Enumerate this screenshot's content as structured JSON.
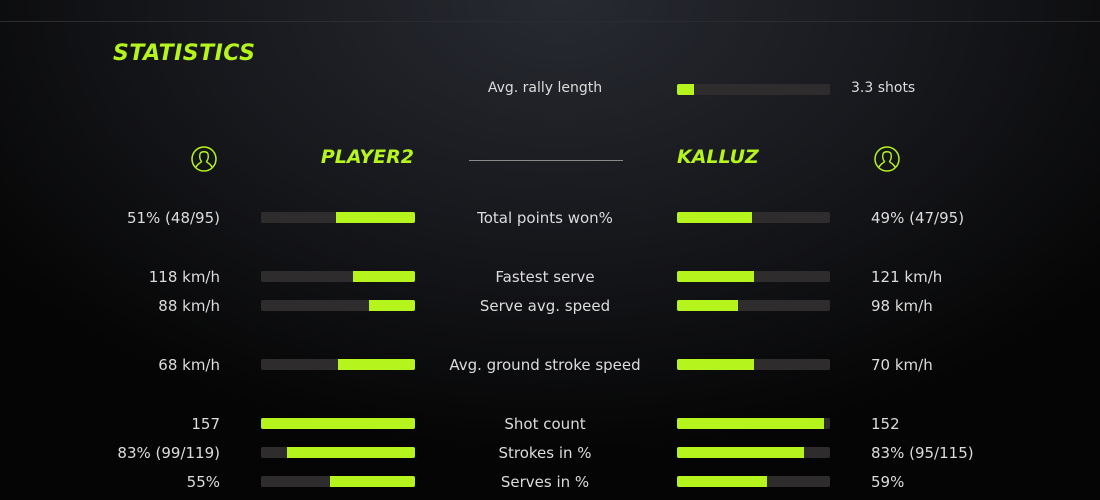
{
  "title": "STATISTICS",
  "accent": "#b5f51d",
  "rally": {
    "label": "Avg. rally length",
    "value": "3.3 shots",
    "fill": 0.11
  },
  "players": {
    "left": "PLAYER2",
    "right": "KALLUZ",
    "icon": "user-circle-icon"
  },
  "rows": [
    {
      "label": "Total points won%",
      "left": "51% (48/95)",
      "right": "49% (47/95)",
      "left_fill": 0.51,
      "right_fill": 0.49
    },
    {
      "label": "Fastest serve",
      "left": "118 km/h",
      "right": "121 km/h",
      "left_fill": 0.4,
      "right_fill": 0.5
    },
    {
      "label": "Serve avg. speed",
      "left": "88 km/h",
      "right": "98 km/h",
      "left_fill": 0.3,
      "right_fill": 0.4
    },
    {
      "label": "Avg. ground stroke speed",
      "left": "68 km/h",
      "right": "70 km/h",
      "left_fill": 0.5,
      "right_fill": 0.5
    },
    {
      "label": "Shot count",
      "left": "157",
      "right": "152",
      "left_fill": 1.0,
      "right_fill": 0.96
    },
    {
      "label": "Strokes in %",
      "left": "83% (99/119)",
      "right": "83% (95/115)",
      "left_fill": 0.83,
      "right_fill": 0.83
    },
    {
      "label": "Serves in %",
      "left": "55%",
      "right": "59%",
      "left_fill": 0.55,
      "right_fill": 0.59
    }
  ]
}
